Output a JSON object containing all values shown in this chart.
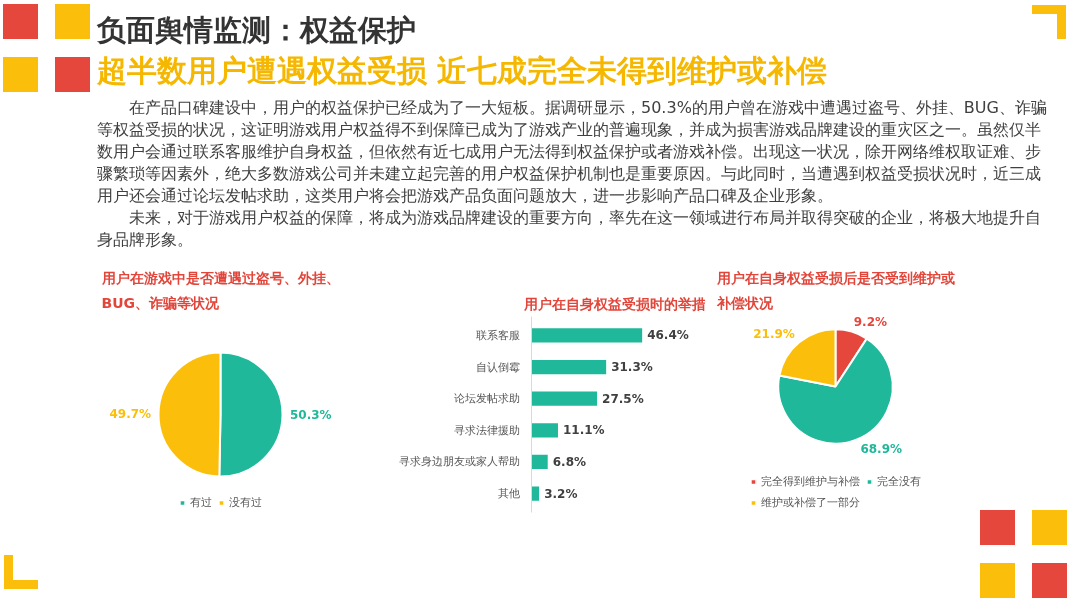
{
  "chart_data": [
    {
      "type": "other",
      "title": "负面舆情监测：权益保护",
      "subtitle": "超半数用户遭遇权益受损 近七成完全未得到维护或补偿",
      "annotations": [
        "在产品口碑建设中，用户的权益保护已经成为了一大短板。据调研显示，50.3%的用户曾在游戏中遭遇过盗号、外挂、BUG、诈骗等权益受损的状况，这证明游戏用户权益得不到保障已成为了游戏产业的普遍现象，并成为损害游戏品牌建设的重灾区之一。虽然仅半数用户会通过联系客服维护自身权益，但依然有近七成用户无法得到权益保护或者游戏补偿。出现这一状况，除开网络维权取证难、步骤繁琐等因素外，绝大多数游戏公司并未建立起完善的用户权益保护机制也是重要原因。与此同时，当遭遇到权益受损状况时，近三成用户还会通过论坛发帖求助，这类用户将会把游戏产品负面问题放大，进一步影响产品口碑及企业形象。",
        "未来，对于游戏用户权益的保障，将成为游戏品牌建设的重要方向，率先在这一领域进行布局并取得突破的企业，将极大地提升自身品牌形象。"
      ]
    },
    {
      "type": "pie",
      "title": "用户在游戏中是否遭遇过盗号、外挂、BUG、诈骗等状况",
      "categories": [
        "有过",
        "没有过"
      ],
      "values": [
        50.3,
        49.7
      ],
      "colors": [
        "#1fb89a",
        "#fbbf0b"
      ],
      "value_labels": [
        "50.3%",
        "49.7%"
      ],
      "legend": "bottom"
    },
    {
      "type": "bar",
      "orientation": "horizontal",
      "title": "用户在自身权益受损时的举措",
      "categories": [
        "联系客服",
        "自认倒霉",
        "论坛发帖求助",
        "寻求法律援助",
        "寻求身边朋友或家人帮助",
        "其他"
      ],
      "values": [
        46.4,
        31.3,
        27.5,
        11.1,
        6.8,
        3.2
      ],
      "color": "#1fb89a",
      "value_labels": [
        "46.4%",
        "31.3%",
        "27.5%",
        "11.1%",
        "6.8%",
        "3.2%"
      ],
      "tick_labels": "y"
    },
    {
      "type": "pie",
      "title": "用户在自身权益受损后是否受到维护或补偿状况",
      "categories": [
        "完全得到维护与补偿",
        "完全没有",
        "维护或补偿了一部分"
      ],
      "values": [
        9.2,
        68.9,
        21.9
      ],
      "colors": [
        "#e5473c",
        "#1fb89a",
        "#fbbf0b"
      ],
      "value_labels": [
        "9.2%",
        "68.9%",
        "21.9%"
      ],
      "legend": "bottom"
    }
  ]
}
